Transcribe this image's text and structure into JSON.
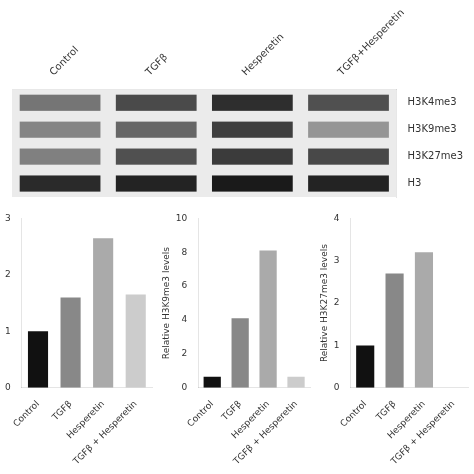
{
  "chart_data": [
    {
      "type": "heatmap",
      "categories": [
        "Control",
        "TGFβ",
        "Hesperetin",
        "TGFβ+Hesperetin"
      ],
      "rows": [
        "H3K4me3",
        "H3K9me3",
        "H3K27me3",
        "H3"
      ],
      "cells": [
        [
          0.55,
          0.75,
          0.88,
          0.72
        ],
        [
          0.48,
          0.62,
          0.8,
          0.4
        ],
        [
          0.5,
          0.72,
          0.82,
          0.76
        ],
        [
          0.9,
          0.93,
          0.97,
          0.93
        ]
      ],
      "grid": false
    },
    {
      "type": "bar",
      "categories": [
        "Control",
        "TGFβ",
        "Hesperetin",
        "TGFβ + Hesperetin"
      ],
      "values": [
        1.0,
        1.6,
        2.65,
        1.65
      ],
      "colors": [
        "#111111",
        "#888888",
        "#aaaaaa",
        "#cccccc"
      ],
      "ylim": [
        0,
        3
      ],
      "yticks": [
        0,
        1,
        2,
        3
      ],
      "grid": false
    },
    {
      "type": "bar",
      "ylabel": "Relative H3K9me3 levels",
      "categories": [
        "Control",
        "TGFβ",
        "Hesperetin",
        "TGFβ + Hesperetin"
      ],
      "values": [
        0.65,
        4.1,
        8.1,
        0.65
      ],
      "colors": [
        "#111111",
        "#888888",
        "#aaaaaa",
        "#cccccc"
      ],
      "ylim": [
        0,
        10
      ],
      "yticks": [
        0,
        2,
        4,
        6,
        8,
        10
      ],
      "grid": false
    },
    {
      "type": "bar",
      "ylabel": "Relative H3K27me3 levels",
      "categories": [
        "Control",
        "TGFβ",
        "Hesperetin",
        "TGFβ + Hesperetin"
      ],
      "values": [
        1.0,
        2.7,
        3.2,
        0.0
      ],
      "colors": [
        "#111111",
        "#888888",
        "#aaaaaa",
        "#cccccc"
      ],
      "ylim": [
        0,
        4
      ],
      "yticks": [
        0,
        1,
        2,
        3,
        4
      ],
      "grid": false
    }
  ]
}
